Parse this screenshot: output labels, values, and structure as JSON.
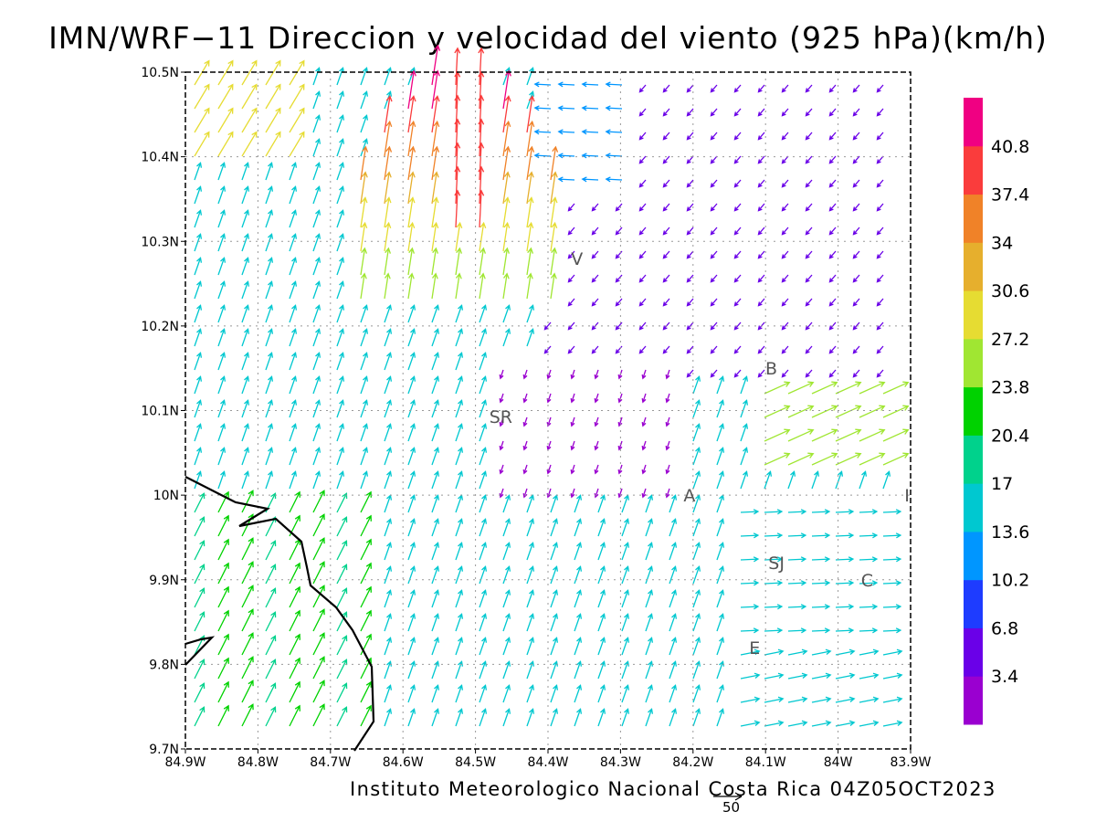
{
  "title": "IMN/WRF−11 Direccion y velocidad del viento (925 hPa)(km/h)",
  "footer": "Instituto Meteorologico Nacional Costa Rica 04Z05OCT2023",
  "reference_vector": {
    "label": "50"
  },
  "map": {
    "lon_range": [
      -84.9,
      -83.9
    ],
    "lat_range": [
      9.7,
      10.5
    ],
    "gridlines": "dotted",
    "x_ticks": [
      "84.9W",
      "84.8W",
      "84.7W",
      "84.6W",
      "84.5W",
      "84.4W",
      "84.3W",
      "84.2W",
      "84.1W",
      "84W",
      "83.9W"
    ],
    "y_ticks": [
      "9.7N",
      "9.8N",
      "9.9N",
      "10N",
      "10.1N",
      "10.2N",
      "10.3N",
      "10.4N",
      "10.5N"
    ],
    "stations": [
      {
        "label": "V",
        "lon": -84.36,
        "lat": 10.28
      },
      {
        "label": "B",
        "lon": -84.092,
        "lat": 10.15
      },
      {
        "label": "SR",
        "lon": -84.465,
        "lat": 10.093
      },
      {
        "label": "A",
        "lon": -84.205,
        "lat": 10.0
      },
      {
        "label": "I",
        "lon": -83.905,
        "lat": 10.0
      },
      {
        "label": "SJ",
        "lon": -84.085,
        "lat": 9.92
      },
      {
        "label": "C",
        "lon": -83.96,
        "lat": 9.9
      },
      {
        "label": "E",
        "lon": -84.115,
        "lat": 9.82
      }
    ]
  },
  "colorbar": {
    "labels": [
      "40.8",
      "37.4",
      "34",
      "30.6",
      "27.2",
      "23.8",
      "20.4",
      "17",
      "13.6",
      "10.2",
      "6.8",
      "3.4"
    ],
    "colors": [
      "#9a00d0",
      "#6a00e8",
      "#1e3cff",
      "#0096ff",
      "#00c8d0",
      "#00d28c",
      "#00d200",
      "#a0e632",
      "#e6dc32",
      "#e6af2d",
      "#f08228",
      "#fa3c3c",
      "#f00082"
    ]
  }
}
